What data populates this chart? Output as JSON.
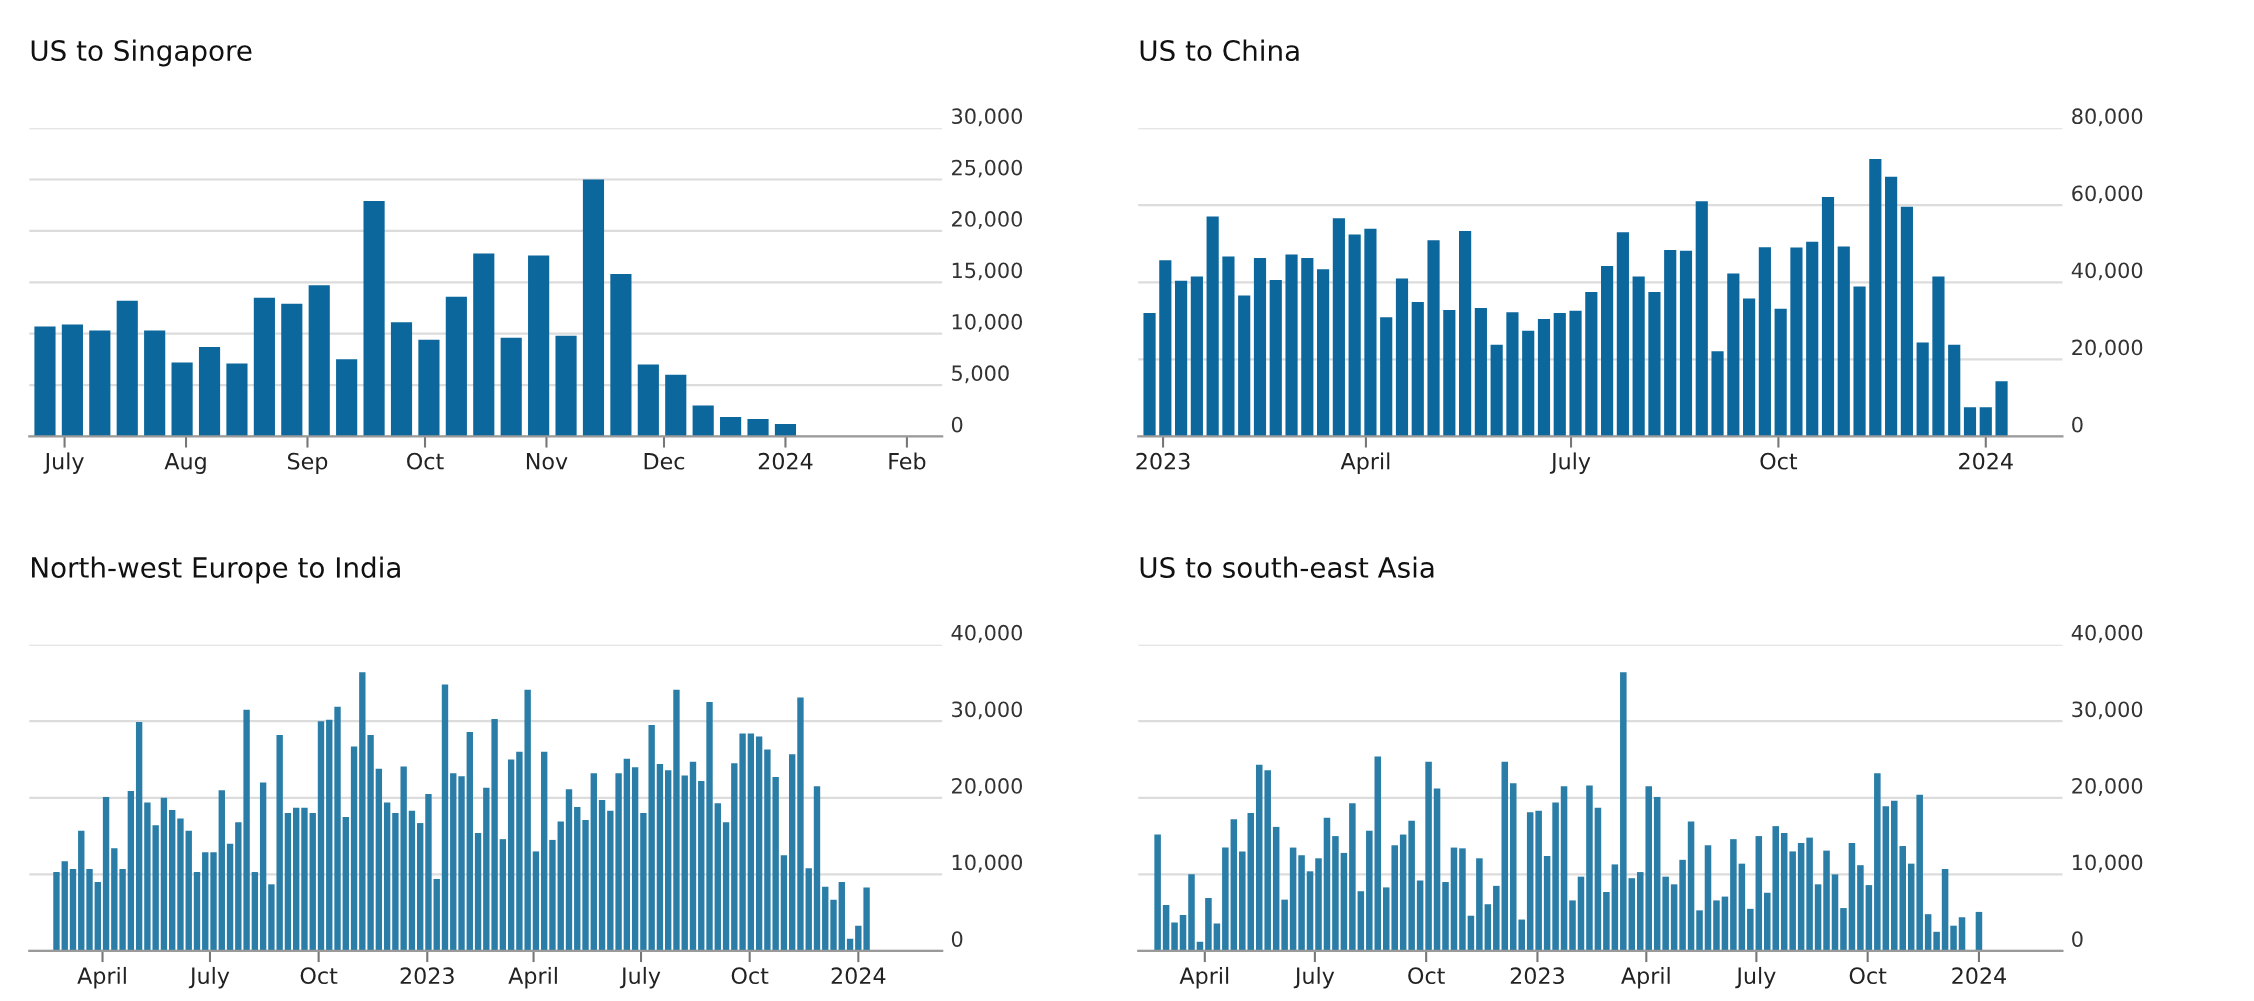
{
  "chart_data": [
    {
      "type": "bar",
      "title": "US to Singapore",
      "color": "#0b679c",
      "grid": "y",
      "x": [
        "2023-06-26",
        "2023-07-03",
        "2023-07-10",
        "2023-07-17",
        "2023-07-24",
        "2023-07-31",
        "2023-08-07",
        "2023-08-14",
        "2023-08-21",
        "2023-08-28",
        "2023-09-04",
        "2023-09-11",
        "2023-09-18",
        "2023-09-25",
        "2023-10-02",
        "2023-10-09",
        "2023-10-16",
        "2023-10-23",
        "2023-10-30",
        "2023-11-06",
        "2023-11-13",
        "2023-11-20",
        "2023-11-27",
        "2023-12-04",
        "2023-12-11",
        "2023-12-18",
        "2023-12-25",
        "2024-01-01"
      ],
      "values": [
        10700,
        10900,
        10300,
        13200,
        10300,
        7200,
        8700,
        7100,
        13500,
        12900,
        14700,
        7500,
        22900,
        11100,
        9400,
        13600,
        17800,
        9600,
        17600,
        9800,
        25000,
        15800,
        7000,
        6000,
        3000,
        1900,
        1700,
        1200
      ],
      "xlim": [
        "2023-06-22",
        "2024-02-10"
      ],
      "ylim": [
        0,
        30000
      ],
      "xticks": [
        {
          "value": "2023-07-01",
          "label": "July"
        },
        {
          "value": "2023-08-01",
          "label": "Aug"
        },
        {
          "value": "2023-09-01",
          "label": "Sep"
        },
        {
          "value": "2023-10-01",
          "label": "Oct"
        },
        {
          "value": "2023-11-01",
          "label": "Nov"
        },
        {
          "value": "2023-12-01",
          "label": "Dec"
        },
        {
          "value": "2024-01-01",
          "label": "2024"
        },
        {
          "value": "2024-02-01",
          "label": "Feb"
        }
      ],
      "yticks": [
        0,
        {
          "value": 5000,
          "label": "5,000"
        },
        {
          "value": 10000,
          "label": "10,000"
        },
        {
          "value": 15000,
          "label": "15,000"
        },
        {
          "value": 20000,
          "label": "20,000"
        },
        {
          "value": 25000,
          "label": "25,000"
        },
        {
          "value": 30000,
          "label": "30,000"
        }
      ]
    },
    {
      "type": "bar",
      "title": "US to China",
      "color": "#0b679c",
      "grid": "y",
      "x": [
        "2022-12-26",
        "2023-01-02",
        "2023-01-09",
        "2023-01-16",
        "2023-01-23",
        "2023-01-30",
        "2023-02-06",
        "2023-02-13",
        "2023-02-20",
        "2023-02-27",
        "2023-03-06",
        "2023-03-13",
        "2023-03-20",
        "2023-03-27",
        "2023-04-03",
        "2023-04-10",
        "2023-04-17",
        "2023-04-24",
        "2023-05-01",
        "2023-05-08",
        "2023-05-15",
        "2023-05-22",
        "2023-05-29",
        "2023-06-05",
        "2023-06-12",
        "2023-06-19",
        "2023-06-26",
        "2023-07-03",
        "2023-07-10",
        "2023-07-17",
        "2023-07-24",
        "2023-07-31",
        "2023-08-07",
        "2023-08-14",
        "2023-08-21",
        "2023-08-28",
        "2023-09-04",
        "2023-09-11",
        "2023-09-18",
        "2023-09-25",
        "2023-10-02",
        "2023-10-09",
        "2023-10-16",
        "2023-10-23",
        "2023-10-30",
        "2023-11-06",
        "2023-11-13",
        "2023-11-20",
        "2023-11-27",
        "2023-12-04",
        "2023-12-11",
        "2023-12-18",
        "2023-12-25",
        "2024-01-01",
        "2024-01-08"
      ],
      "values": [
        32000,
        45700,
        40400,
        41500,
        57100,
        46700,
        36600,
        46300,
        40600,
        47200,
        46300,
        43400,
        56600,
        52400,
        53900,
        30900,
        41000,
        34900,
        50900,
        32800,
        53300,
        33300,
        23800,
        32200,
        27400,
        30500,
        32000,
        32600,
        37500,
        44200,
        53000,
        41500,
        37500,
        48400,
        48200,
        61000,
        22100,
        42300,
        35800,
        49100,
        33100,
        49000,
        50500,
        62100,
        49300,
        38900,
        72000,
        67400,
        59600,
        24400,
        41500,
        23800,
        7600,
        7600,
        14300
      ],
      "xlim": [
        "2022-12-21",
        "2024-02-04"
      ],
      "ylim": [
        0,
        80000
      ],
      "xticks": [
        {
          "value": "2023-01-01",
          "label": "2023"
        },
        {
          "value": "2023-04-01",
          "label": "April"
        },
        {
          "value": "2023-07-01",
          "label": "July"
        },
        {
          "value": "2023-10-01",
          "label": "Oct"
        },
        {
          "value": "2024-01-01",
          "label": "2024"
        }
      ],
      "yticks": [
        0,
        {
          "value": 20000,
          "label": "20,000"
        },
        {
          "value": 40000,
          "label": "40,000"
        },
        {
          "value": 60000,
          "label": "60,000"
        },
        {
          "value": 80000,
          "label": "80,000"
        }
      ]
    },
    {
      "type": "bar",
      "title": "North-west Europe to India",
      "color": "#2a7da6",
      "grid": "y",
      "x": [
        "2022-02-21",
        "2022-02-28",
        "2022-03-07",
        "2022-03-14",
        "2022-03-21",
        "2022-03-28",
        "2022-04-04",
        "2022-04-11",
        "2022-04-18",
        "2022-04-25",
        "2022-05-02",
        "2022-05-09",
        "2022-05-16",
        "2022-05-23",
        "2022-05-30",
        "2022-06-06",
        "2022-06-13",
        "2022-06-20",
        "2022-06-27",
        "2022-07-04",
        "2022-07-11",
        "2022-07-18",
        "2022-07-25",
        "2022-08-01",
        "2022-08-08",
        "2022-08-15",
        "2022-08-22",
        "2022-08-29",
        "2022-09-05",
        "2022-09-12",
        "2022-09-19",
        "2022-09-26",
        "2022-10-03",
        "2022-10-10",
        "2022-10-17",
        "2022-10-24",
        "2022-10-31",
        "2022-11-07",
        "2022-11-14",
        "2022-11-21",
        "2022-11-28",
        "2022-12-05",
        "2022-12-12",
        "2022-12-19",
        "2022-12-26",
        "2023-01-02",
        "2023-01-09",
        "2023-01-16",
        "2023-01-23",
        "2023-01-30",
        "2023-02-06",
        "2023-02-13",
        "2023-02-20",
        "2023-02-27",
        "2023-03-06",
        "2023-03-13",
        "2023-03-20",
        "2023-03-27",
        "2023-04-03",
        "2023-04-10",
        "2023-04-17",
        "2023-04-24",
        "2023-05-01",
        "2023-05-08",
        "2023-05-15",
        "2023-05-22",
        "2023-05-29",
        "2023-06-05",
        "2023-06-12",
        "2023-06-19",
        "2023-06-26",
        "2023-07-03",
        "2023-07-10",
        "2023-07-17",
        "2023-07-24",
        "2023-07-31",
        "2023-08-07",
        "2023-08-14",
        "2023-08-21",
        "2023-08-28",
        "2023-09-04",
        "2023-09-11",
        "2023-09-18",
        "2023-09-25",
        "2023-10-02",
        "2023-10-09",
        "2023-10-16",
        "2023-10-23",
        "2023-10-30",
        "2023-11-06",
        "2023-11-13",
        "2023-11-20",
        "2023-11-27",
        "2023-12-04",
        "2023-12-11",
        "2023-12-18",
        "2023-12-25",
        "2024-01-01",
        "2024-01-08"
      ],
      "values": [
        10300,
        11700,
        10700,
        15700,
        10700,
        9000,
        20100,
        13400,
        10700,
        20900,
        29900,
        19400,
        16400,
        20000,
        18400,
        17300,
        15700,
        10300,
        12900,
        12900,
        21000,
        14000,
        16800,
        31500,
        10300,
        22000,
        8700,
        28200,
        18000,
        18700,
        18700,
        18000,
        30000,
        30200,
        31900,
        17500,
        26700,
        36400,
        28200,
        23800,
        19400,
        18000,
        24100,
        18300,
        16700,
        20500,
        9400,
        34800,
        23200,
        22800,
        28600,
        15400,
        21300,
        30300,
        14600,
        25000,
        26000,
        34100,
        13000,
        26000,
        14500,
        16900,
        21100,
        18800,
        17100,
        23200,
        19700,
        18300,
        23200,
        25100,
        24000,
        18000,
        29500,
        24400,
        23600,
        34100,
        22900,
        24700,
        22200,
        32500,
        19300,
        16800,
        24500,
        28400,
        28400,
        28000,
        26300,
        22700,
        12500,
        25700,
        33100,
        10800,
        21500,
        8400,
        6700,
        9000,
        1600,
        3300,
        8300
      ],
      "xlim": [
        "2022-01-29",
        "2024-03-12"
      ],
      "ylim": [
        0,
        40000
      ],
      "xticks": [
        {
          "value": "2022-04-01",
          "label": "April"
        },
        {
          "value": "2022-07-01",
          "label": "July"
        },
        {
          "value": "2022-10-01",
          "label": "Oct"
        },
        {
          "value": "2023-01-01",
          "label": "2023"
        },
        {
          "value": "2023-04-01",
          "label": "April"
        },
        {
          "value": "2023-07-01",
          "label": "July"
        },
        {
          "value": "2023-10-01",
          "label": "Oct"
        },
        {
          "value": "2024-01-01",
          "label": "2024"
        }
      ],
      "yticks": [
        0,
        {
          "value": 10000,
          "label": "10,000"
        },
        {
          "value": 20000,
          "label": "20,000"
        },
        {
          "value": 30000,
          "label": "30,000"
        },
        {
          "value": 40000,
          "label": "40,000"
        }
      ]
    },
    {
      "type": "bar",
      "title": "US to south-east Asia",
      "color": "#2a7da6",
      "grid": "y",
      "x": [
        "2022-02-21",
        "2022-02-28",
        "2022-03-07",
        "2022-03-14",
        "2022-03-21",
        "2022-03-28",
        "2022-04-04",
        "2022-04-11",
        "2022-04-18",
        "2022-04-25",
        "2022-05-02",
        "2022-05-09",
        "2022-05-16",
        "2022-05-23",
        "2022-05-30",
        "2022-06-06",
        "2022-06-13",
        "2022-06-20",
        "2022-06-27",
        "2022-07-04",
        "2022-07-11",
        "2022-07-18",
        "2022-07-25",
        "2022-08-01",
        "2022-08-08",
        "2022-08-15",
        "2022-08-22",
        "2022-08-29",
        "2022-09-05",
        "2022-09-12",
        "2022-09-19",
        "2022-09-26",
        "2022-10-03",
        "2022-10-10",
        "2022-10-17",
        "2022-10-24",
        "2022-10-31",
        "2022-11-07",
        "2022-11-14",
        "2022-11-21",
        "2022-11-28",
        "2022-12-05",
        "2022-12-12",
        "2022-12-19",
        "2022-12-26",
        "2023-01-02",
        "2023-01-09",
        "2023-01-16",
        "2023-01-23",
        "2023-01-30",
        "2023-02-06",
        "2023-02-13",
        "2023-02-20",
        "2023-02-27",
        "2023-03-06",
        "2023-03-13",
        "2023-03-20",
        "2023-03-27",
        "2023-04-03",
        "2023-04-10",
        "2023-04-17",
        "2023-04-24",
        "2023-05-01",
        "2023-05-08",
        "2023-05-15",
        "2023-05-22",
        "2023-05-29",
        "2023-06-05",
        "2023-06-12",
        "2023-06-19",
        "2023-06-26",
        "2023-07-03",
        "2023-07-10",
        "2023-07-17",
        "2023-07-24",
        "2023-07-31",
        "2023-08-07",
        "2023-08-14",
        "2023-08-21",
        "2023-08-28",
        "2023-09-04",
        "2023-09-11",
        "2023-09-18",
        "2023-09-25",
        "2023-10-02",
        "2023-10-09",
        "2023-10-16",
        "2023-10-23",
        "2023-10-30",
        "2023-11-06",
        "2023-11-13",
        "2023-11-20",
        "2023-11-27",
        "2023-12-04",
        "2023-12-11",
        "2023-12-18",
        "2023-12-25",
        "2024-01-01"
      ],
      "values": [
        15200,
        6000,
        3700,
        4700,
        10000,
        1200,
        6900,
        3600,
        13500,
        17200,
        13000,
        18000,
        24300,
        23600,
        16200,
        6700,
        13500,
        12500,
        10400,
        12100,
        17400,
        15000,
        12800,
        19300,
        7800,
        15700,
        25400,
        8300,
        13800,
        15200,
        17000,
        9200,
        24700,
        21200,
        9000,
        13500,
        13400,
        4600,
        12100,
        6100,
        8500,
        24700,
        21900,
        4100,
        18100,
        18300,
        12400,
        19400,
        21500,
        6600,
        9700,
        21600,
        18700,
        7700,
        11300,
        36400,
        9500,
        10300,
        21500,
        20100,
        9700,
        8700,
        11900,
        16900,
        5300,
        13800,
        6600,
        7100,
        14600,
        11400,
        5500,
        15000,
        7600,
        16300,
        15400,
        13000,
        14100,
        14800,
        8700,
        13100,
        10000,
        5600,
        14100,
        11200,
        8600,
        23200,
        18900,
        19600,
        13700,
        11400,
        20400,
        4800,
        2500,
        10700,
        3300,
        4400,
        null,
        5100
      ],
      "xlim": [
        "2022-02-05",
        "2024-03-10"
      ],
      "ylim": [
        0,
        40000
      ],
      "xticks": [
        {
          "value": "2022-04-01",
          "label": "April"
        },
        {
          "value": "2022-07-01",
          "label": "July"
        },
        {
          "value": "2022-10-01",
          "label": "Oct"
        },
        {
          "value": "2023-01-01",
          "label": "2023"
        },
        {
          "value": "2023-04-01",
          "label": "April"
        },
        {
          "value": "2023-07-01",
          "label": "July"
        },
        {
          "value": "2023-10-01",
          "label": "Oct"
        },
        {
          "value": "2024-01-01",
          "label": "2024"
        }
      ],
      "yticks": [
        0,
        {
          "value": 10000,
          "label": "10,000"
        },
        {
          "value": 20000,
          "label": "20,000"
        },
        {
          "value": 30000,
          "label": "30,000"
        },
        {
          "value": 40000,
          "label": "40,000"
        }
      ]
    }
  ]
}
